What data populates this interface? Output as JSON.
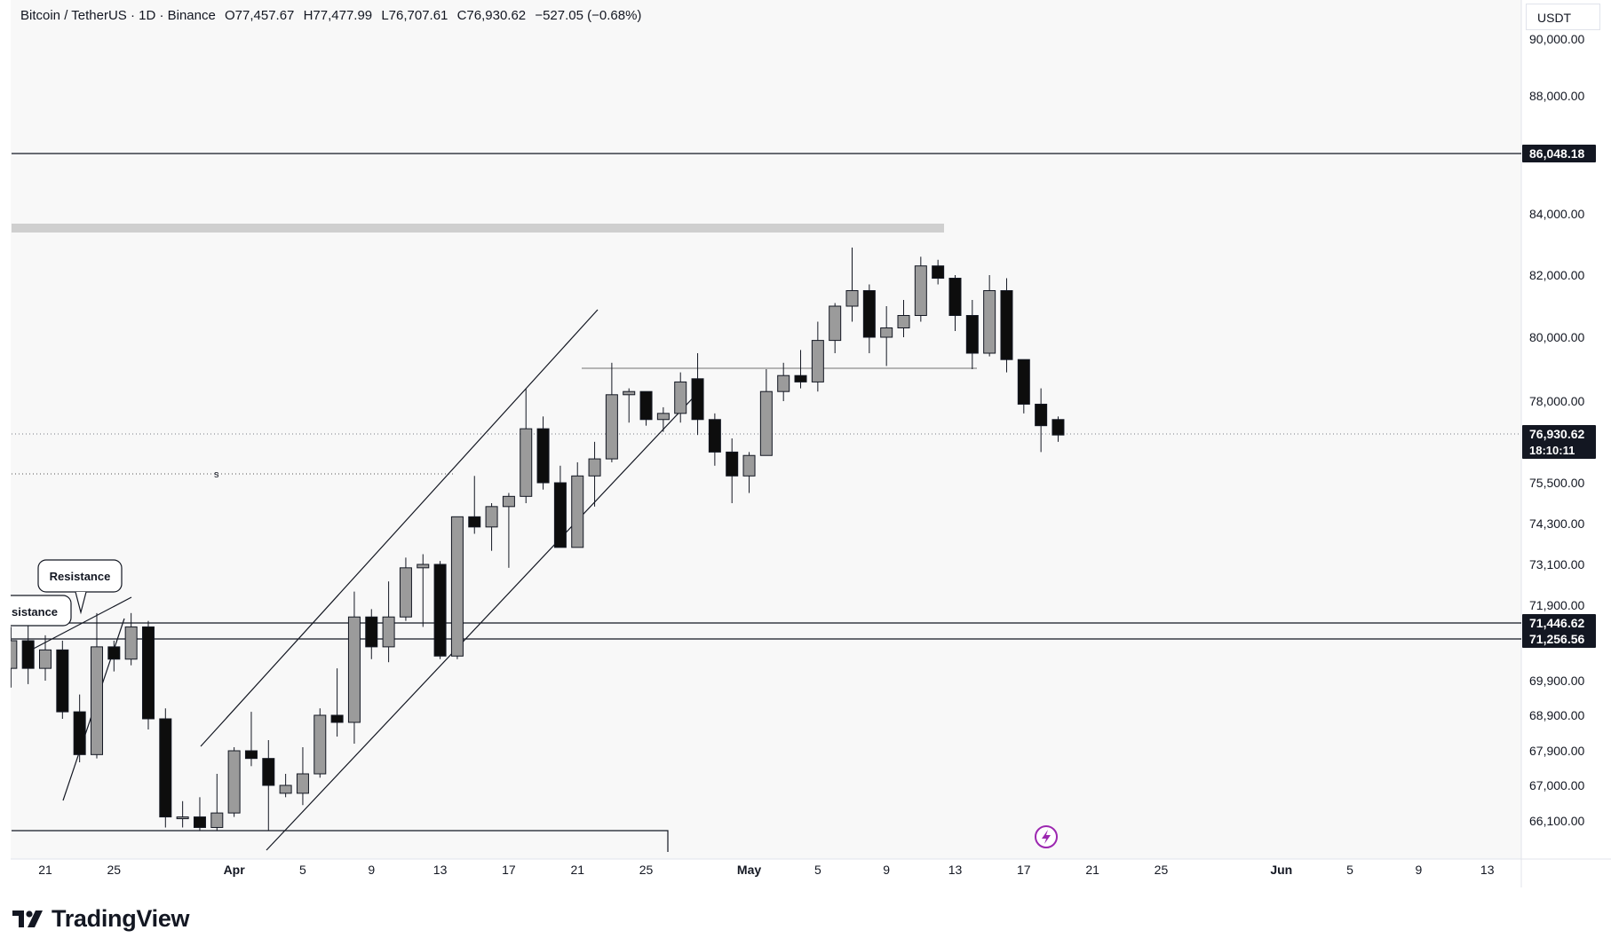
{
  "header": {
    "symbol": "Bitcoin / TetherUS · 1D · Binance",
    "open": "O77,457.67",
    "high": "H77,477.99",
    "low": "L76,707.61",
    "close": "C76,930.62",
    "change": "−527.05 (−0.68%)"
  },
  "currency_label": "USDT",
  "brand": "TradingView",
  "chart_data": {
    "type": "candlestick",
    "symbol": "BTC/USDT",
    "interval": "1D",
    "exchange": "Binance",
    "y_scale": "nonlinear (labels as shown)",
    "y_ticks": [
      {
        "value": 90000,
        "label": "90,000.00"
      },
      {
        "value": 88000,
        "label": "88,000.00"
      },
      {
        "value": 84000,
        "label": "84,000.00"
      },
      {
        "value": 82000,
        "label": "82,000.00"
      },
      {
        "value": 80000,
        "label": "80,000.00"
      },
      {
        "value": 78000,
        "label": "78,000.00"
      },
      {
        "value": 75500,
        "label": "75,500.00"
      },
      {
        "value": 74300,
        "label": "74,300.00"
      },
      {
        "value": 73100,
        "label": "73,100.00"
      },
      {
        "value": 71900,
        "label": "71,900.00"
      },
      {
        "value": 69900,
        "label": "69,900.00"
      },
      {
        "value": 68900,
        "label": "68,900.00"
      },
      {
        "value": 67900,
        "label": "67,900.00"
      },
      {
        "value": 67000,
        "label": "67,000.00"
      },
      {
        "value": 66100,
        "label": "66,100.00"
      }
    ],
    "x_ticks": [
      {
        "i": 0,
        "label": "21"
      },
      {
        "i": 4,
        "label": "25"
      },
      {
        "i": 11,
        "label": "Apr",
        "bold": true
      },
      {
        "i": 15,
        "label": "5"
      },
      {
        "i": 19,
        "label": "9"
      },
      {
        "i": 23,
        "label": "13"
      },
      {
        "i": 27,
        "label": "17"
      },
      {
        "i": 31,
        "label": "21"
      },
      {
        "i": 35,
        "label": "25"
      },
      {
        "i": 41,
        "label": "May",
        "bold": true
      },
      {
        "i": 45,
        "label": "5"
      },
      {
        "i": 49,
        "label": "9"
      },
      {
        "i": 53,
        "label": "13"
      },
      {
        "i": 57,
        "label": "17"
      },
      {
        "i": 61,
        "label": "21"
      },
      {
        "i": 65,
        "label": "25"
      },
      {
        "i": 72,
        "label": "Jun",
        "bold": true
      },
      {
        "i": 76,
        "label": "5"
      },
      {
        "i": 80,
        "label": "9"
      },
      {
        "i": 84,
        "label": "13"
      }
    ],
    "price_labels": [
      {
        "value": 86048.18,
        "label": "86,048.18"
      },
      {
        "value": 76930.62,
        "label": "76,930.62",
        "sub": "18:10:11"
      },
      {
        "value": 71446.62,
        "label": "71,446.62"
      },
      {
        "value": 71256.56,
        "label": "71,256.56"
      }
    ],
    "horizontal_lines": [
      86048.18,
      71446.62,
      71256.56
    ],
    "annotations": [
      "Resistance",
      "sistance",
      "s"
    ],
    "candles": [
      {
        "i": -2,
        "o": 70300,
        "h": 71400,
        "l": 69700,
        "c": 71200
      },
      {
        "i": -1,
        "o": 71200,
        "h": 71500,
        "l": 69800,
        "c": 70300
      },
      {
        "i": 0,
        "o": 70300,
        "h": 71300,
        "l": 69900,
        "c": 70900
      },
      {
        "i": 1,
        "o": 70900,
        "h": 71200,
        "l": 68800,
        "c": 69000
      },
      {
        "i": 2,
        "o": 69000,
        "h": 69500,
        "l": 67600,
        "c": 67800
      },
      {
        "i": 3,
        "o": 67800,
        "h": 71700,
        "l": 67700,
        "c": 71000
      },
      {
        "i": 4,
        "o": 71000,
        "h": 71200,
        "l": 70200,
        "c": 70600
      },
      {
        "i": 5,
        "o": 70600,
        "h": 71700,
        "l": 70400,
        "c": 71400
      },
      {
        "i": 6,
        "o": 71400,
        "h": 71500,
        "l": 68500,
        "c": 68800
      },
      {
        "i": 7,
        "o": 68800,
        "h": 69100,
        "l": 65900,
        "c": 66200
      },
      {
        "i": 8,
        "o": 66200,
        "h": 66600,
        "l": 65900,
        "c": 66200
      },
      {
        "i": 9,
        "o": 66200,
        "h": 66700,
        "l": 65800,
        "c": 65900
      },
      {
        "i": 10,
        "o": 65900,
        "h": 67300,
        "l": 65800,
        "c": 66300
      },
      {
        "i": 11,
        "o": 66300,
        "h": 68000,
        "l": 66200,
        "c": 67900
      },
      {
        "i": 12,
        "o": 67900,
        "h": 69000,
        "l": 67500,
        "c": 67700
      },
      {
        "i": 13,
        "o": 67700,
        "h": 68200,
        "l": 65800,
        "c": 67000
      },
      {
        "i": 14,
        "o": 66800,
        "h": 67300,
        "l": 66700,
        "c": 67000
      },
      {
        "i": 15,
        "o": 66800,
        "h": 68000,
        "l": 66500,
        "c": 67300
      },
      {
        "i": 16,
        "o": 67300,
        "h": 69100,
        "l": 67200,
        "c": 68900
      },
      {
        "i": 17,
        "o": 68900,
        "h": 70300,
        "l": 68300,
        "c": 68700
      },
      {
        "i": 18,
        "o": 68700,
        "h": 72300,
        "l": 68100,
        "c": 71600
      },
      {
        "i": 19,
        "o": 71600,
        "h": 71800,
        "l": 70600,
        "c": 71000
      },
      {
        "i": 20,
        "o": 71000,
        "h": 72600,
        "l": 70500,
        "c": 71600
      },
      {
        "i": 21,
        "o": 71600,
        "h": 73300,
        "l": 71500,
        "c": 73000
      },
      {
        "i": 22,
        "o": 73000,
        "h": 73400,
        "l": 71400,
        "c": 73100
      },
      {
        "i": 23,
        "o": 73100,
        "h": 73200,
        "l": 70600,
        "c": 70700
      },
      {
        "i": 24,
        "o": 70700,
        "h": 74500,
        "l": 70600,
        "c": 74500
      },
      {
        "i": 25,
        "o": 74500,
        "h": 75700,
        "l": 74000,
        "c": 74200
      },
      {
        "i": 26,
        "o": 74200,
        "h": 74900,
        "l": 73500,
        "c": 74800
      },
      {
        "i": 27,
        "o": 74800,
        "h": 75200,
        "l": 73000,
        "c": 75100
      },
      {
        "i": 28,
        "o": 75100,
        "h": 78400,
        "l": 74900,
        "c": 77100
      },
      {
        "i": 29,
        "o": 77100,
        "h": 77500,
        "l": 75300,
        "c": 75500
      },
      {
        "i": 30,
        "o": 75500,
        "h": 76000,
        "l": 73600,
        "c": 73600
      },
      {
        "i": 31,
        "o": 73600,
        "h": 76100,
        "l": 73600,
        "c": 75700
      },
      {
        "i": 32,
        "o": 75700,
        "h": 76700,
        "l": 74800,
        "c": 76200
      },
      {
        "i": 33,
        "o": 76200,
        "h": 79200,
        "l": 76100,
        "c": 78200
      },
      {
        "i": 34,
        "o": 78200,
        "h": 78400,
        "l": 77300,
        "c": 78300
      },
      {
        "i": 35,
        "o": 78300,
        "h": 78300,
        "l": 77200,
        "c": 77400
      },
      {
        "i": 36,
        "o": 77400,
        "h": 77800,
        "l": 77000,
        "c": 77600
      },
      {
        "i": 37,
        "o": 77600,
        "h": 78900,
        "l": 77300,
        "c": 78600
      },
      {
        "i": 38,
        "o": 78700,
        "h": 79500,
        "l": 76900,
        "c": 77400
      },
      {
        "i": 39,
        "o": 77400,
        "h": 77600,
        "l": 76000,
        "c": 76400
      },
      {
        "i": 40,
        "o": 76400,
        "h": 76800,
        "l": 74900,
        "c": 75700
      },
      {
        "i": 41,
        "o": 75700,
        "h": 76400,
        "l": 75200,
        "c": 76300
      },
      {
        "i": 42,
        "o": 76300,
        "h": 79000,
        "l": 76300,
        "c": 78300
      },
      {
        "i": 43,
        "o": 78300,
        "h": 79200,
        "l": 78000,
        "c": 78800
      },
      {
        "i": 44,
        "o": 78800,
        "h": 79600,
        "l": 78400,
        "c": 78600
      },
      {
        "i": 45,
        "o": 78600,
        "h": 80500,
        "l": 78300,
        "c": 79900
      },
      {
        "i": 46,
        "o": 79900,
        "h": 81100,
        "l": 79500,
        "c": 81000
      },
      {
        "i": 47,
        "o": 81000,
        "h": 82900,
        "l": 80500,
        "c": 81500
      },
      {
        "i": 48,
        "o": 81500,
        "h": 81700,
        "l": 79500,
        "c": 80000
      },
      {
        "i": 49,
        "o": 80000,
        "h": 81000,
        "l": 79100,
        "c": 80300
      },
      {
        "i": 50,
        "o": 80300,
        "h": 81200,
        "l": 80000,
        "c": 80700
      },
      {
        "i": 51,
        "o": 80700,
        "h": 82600,
        "l": 80500,
        "c": 82300
      },
      {
        "i": 52,
        "o": 82300,
        "h": 82500,
        "l": 81700,
        "c": 81900
      },
      {
        "i": 53,
        "o": 81900,
        "h": 82000,
        "l": 80200,
        "c": 80700
      },
      {
        "i": 54,
        "o": 80700,
        "h": 81200,
        "l": 79000,
        "c": 79500
      },
      {
        "i": 55,
        "o": 79500,
        "h": 82000,
        "l": 79400,
        "c": 81500
      },
      {
        "i": 56,
        "o": 81500,
        "h": 81900,
        "l": 78900,
        "c": 79300
      },
      {
        "i": 57,
        "o": 79300,
        "h": 79300,
        "l": 77600,
        "c": 77900
      },
      {
        "i": 58,
        "o": 77900,
        "h": 78400,
        "l": 76400,
        "c": 77200
      },
      {
        "i": 59,
        "o": 77400,
        "h": 77500,
        "l": 76700,
        "c": 76900
      }
    ]
  }
}
